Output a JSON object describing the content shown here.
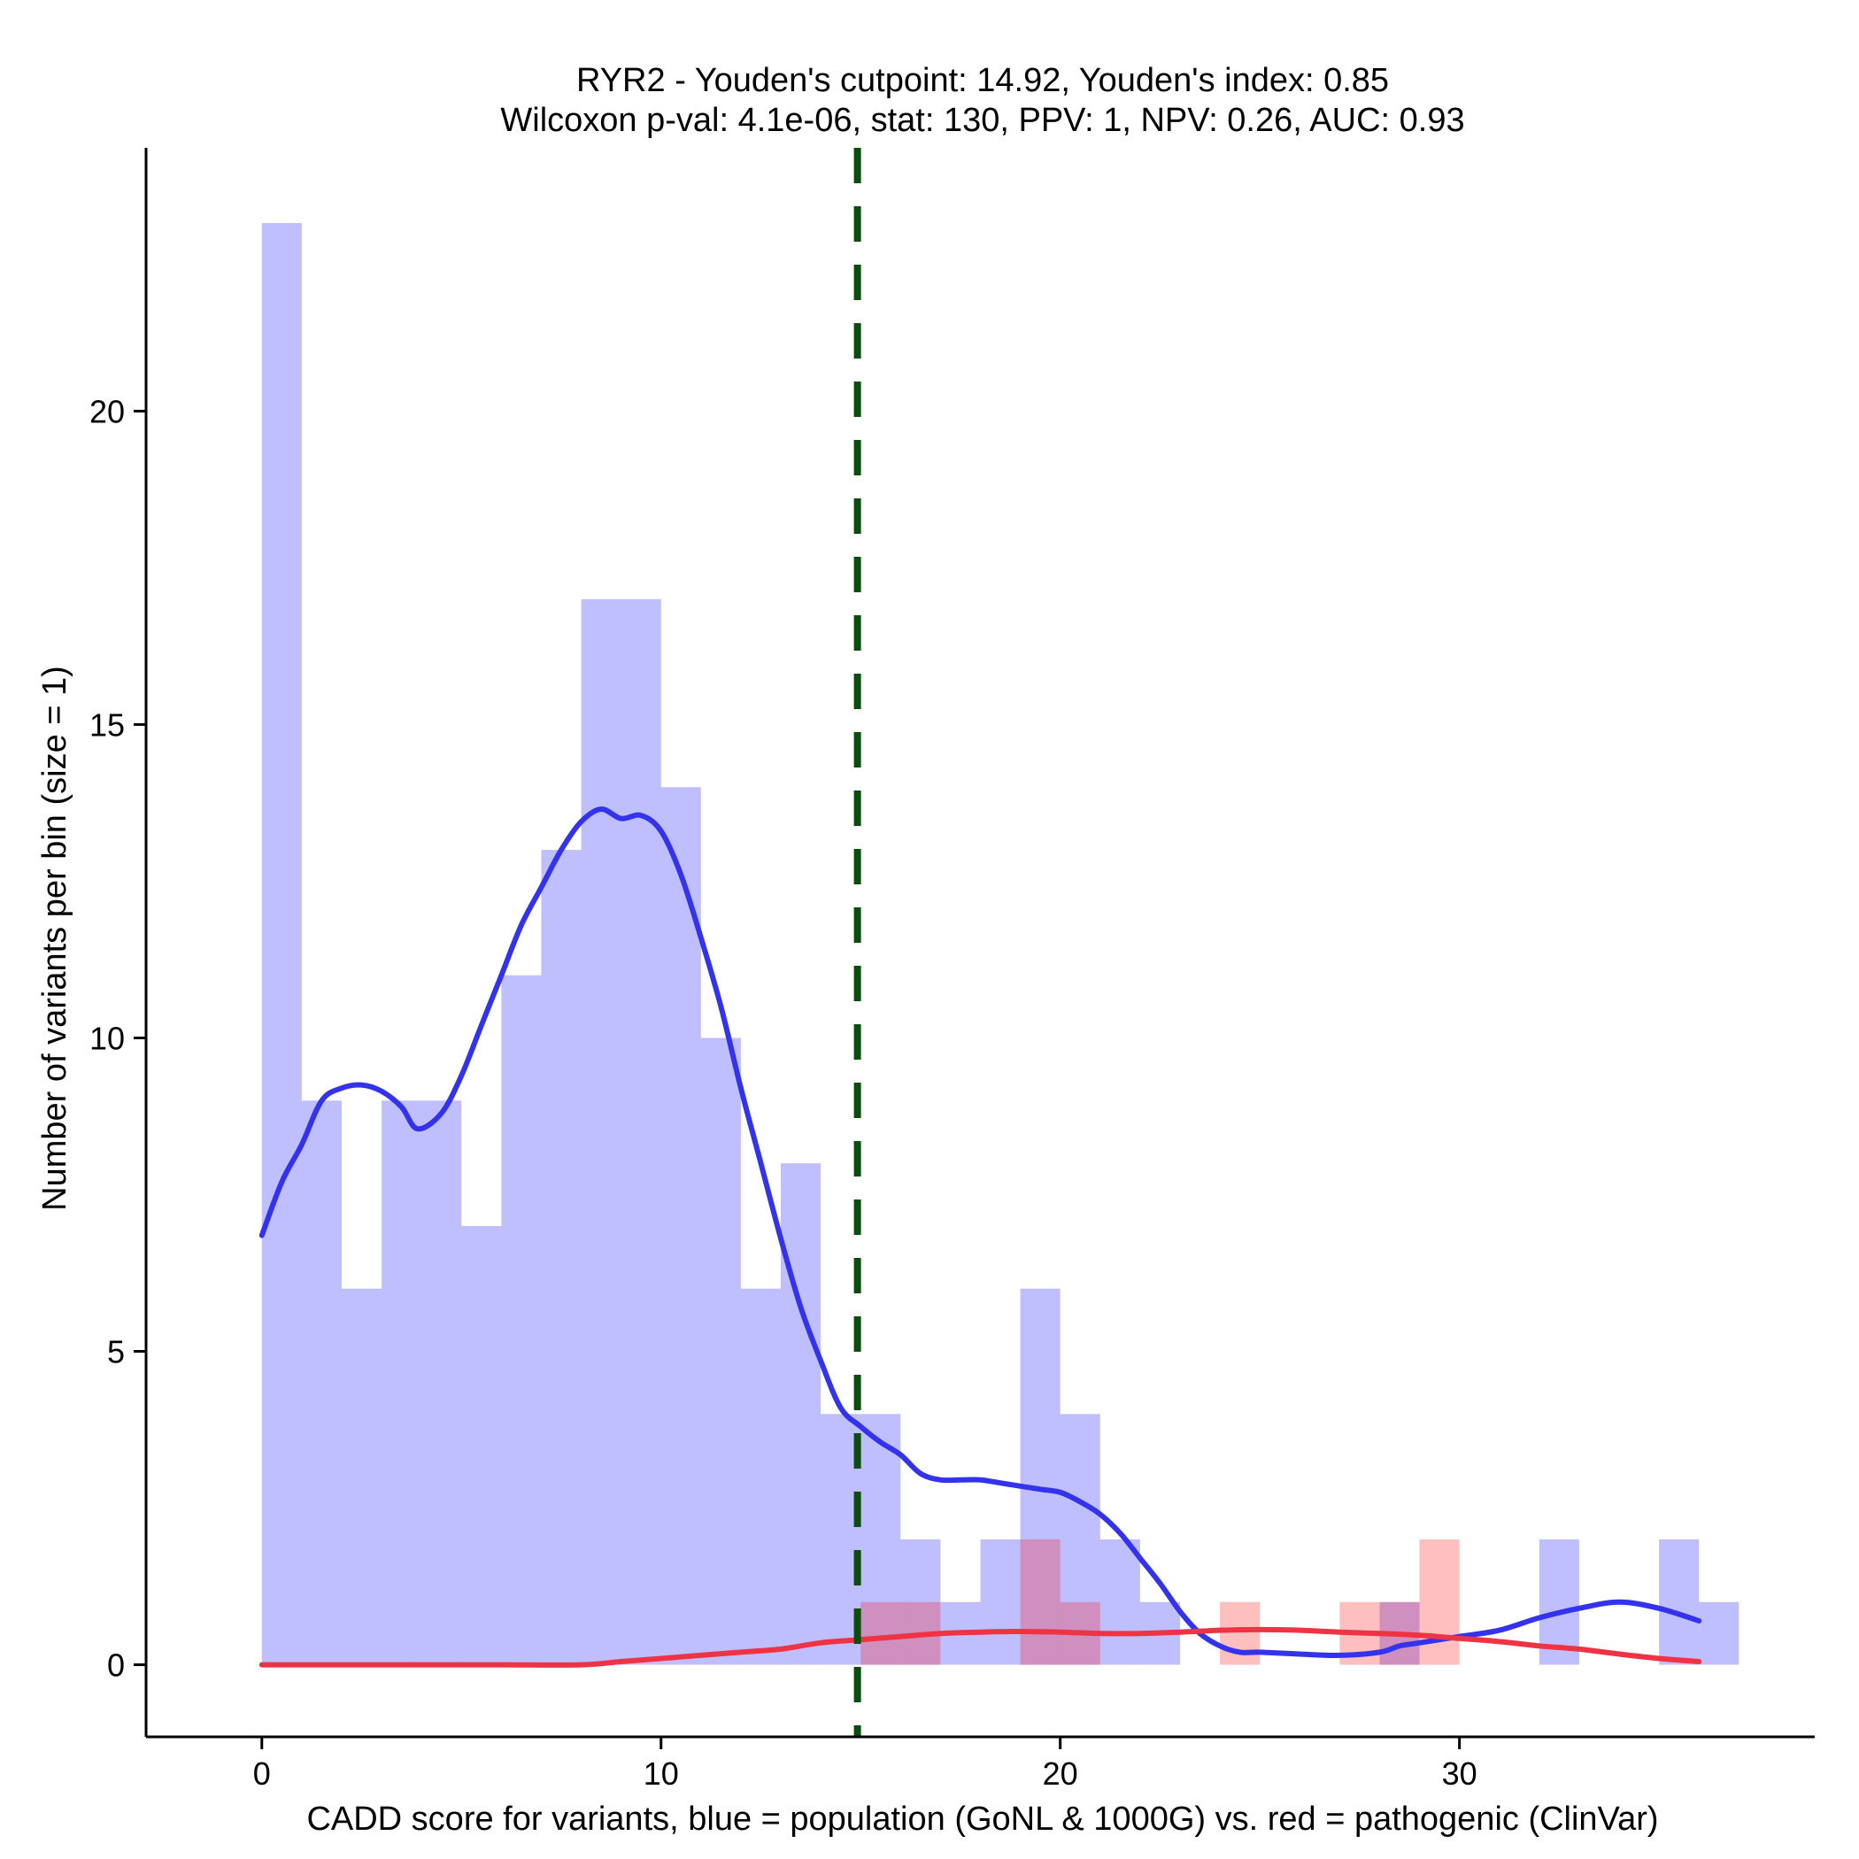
{
  "chart_data": {
    "type": "bar",
    "title_line1": "RYR2 - Youden's cutpoint: 14.92, Youden's index: 0.85",
    "title_line2": "Wilcoxon p-val: 4.1e-06, stat: 130, PPV: 1, NPV: 0.26, AUC: 0.93",
    "xlabel": "CADD score for variants, blue = population (GoNL & 1000G) vs. red = pathogenic (ClinVar)",
    "ylabel": "Number of variants per bin (size = 1)",
    "xlim": [
      -2.9,
      38.9
    ],
    "ylim": [
      -1.15,
      24.2
    ],
    "xticks": [
      0,
      10,
      20,
      30
    ],
    "yticks": [
      0,
      5,
      10,
      15,
      20
    ],
    "bin_width": 1,
    "cutpoint": 14.92,
    "colors": {
      "population_fill": "#0000ff",
      "pathogenic_fill": "#ff0000",
      "population_line": "#3333ee",
      "pathogenic_line": "#ee3344",
      "cutpoint_line": "#0b4d0b"
    },
    "series": [
      {
        "name": "population (GoNL & 1000G)",
        "bins": [
          {
            "start": 0,
            "count": 23
          },
          {
            "start": 1,
            "count": 9
          },
          {
            "start": 2,
            "count": 6
          },
          {
            "start": 3,
            "count": 9
          },
          {
            "start": 4,
            "count": 9
          },
          {
            "start": 5,
            "count": 7
          },
          {
            "start": 6,
            "count": 11
          },
          {
            "start": 7,
            "count": 13
          },
          {
            "start": 8,
            "count": 17
          },
          {
            "start": 9,
            "count": 17
          },
          {
            "start": 10,
            "count": 14
          },
          {
            "start": 11,
            "count": 10
          },
          {
            "start": 12,
            "count": 6
          },
          {
            "start": 13,
            "count": 8
          },
          {
            "start": 14,
            "count": 4
          },
          {
            "start": 15,
            "count": 4
          },
          {
            "start": 16,
            "count": 2
          },
          {
            "start": 17,
            "count": 1
          },
          {
            "start": 18,
            "count": 2
          },
          {
            "start": 19,
            "count": 6
          },
          {
            "start": 20,
            "count": 4
          },
          {
            "start": 21,
            "count": 2
          },
          {
            "start": 22,
            "count": 1
          },
          {
            "start": 28,
            "count": 1
          },
          {
            "start": 32,
            "count": 2
          },
          {
            "start": 35,
            "count": 2
          },
          {
            "start": 36,
            "count": 1
          }
        ],
        "density": [
          [
            0,
            6.85
          ],
          [
            0.5,
            7.7
          ],
          [
            1,
            8.3
          ],
          [
            1.5,
            9.0
          ],
          [
            2,
            9.2
          ],
          [
            2.5,
            9.25
          ],
          [
            3,
            9.15
          ],
          [
            3.5,
            8.9
          ],
          [
            3.9,
            8.55
          ],
          [
            4.5,
            8.8
          ],
          [
            5,
            9.4
          ],
          [
            5.5,
            10.2
          ],
          [
            6,
            11.0
          ],
          [
            6.5,
            11.8
          ],
          [
            7,
            12.4
          ],
          [
            7.5,
            13.0
          ],
          [
            8,
            13.45
          ],
          [
            8.5,
            13.65
          ],
          [
            9,
            13.5
          ],
          [
            9.5,
            13.55
          ],
          [
            10,
            13.3
          ],
          [
            10.5,
            12.6
          ],
          [
            11,
            11.6
          ],
          [
            11.5,
            10.5
          ],
          [
            12,
            9.2
          ],
          [
            12.5,
            8.0
          ],
          [
            13,
            6.8
          ],
          [
            13.5,
            5.7
          ],
          [
            14,
            4.85
          ],
          [
            14.5,
            4.1
          ],
          [
            15,
            3.8
          ],
          [
            15.5,
            3.55
          ],
          [
            16,
            3.35
          ],
          [
            16.5,
            3.05
          ],
          [
            17,
            2.95
          ],
          [
            17.5,
            2.95
          ],
          [
            18,
            2.95
          ],
          [
            18.5,
            2.9
          ],
          [
            19,
            2.85
          ],
          [
            19.5,
            2.8
          ],
          [
            20,
            2.75
          ],
          [
            20.5,
            2.6
          ],
          [
            21,
            2.4
          ],
          [
            21.5,
            2.1
          ],
          [
            22,
            1.7
          ],
          [
            22.5,
            1.3
          ],
          [
            23,
            0.85
          ],
          [
            23.5,
            0.5
          ],
          [
            24,
            0.3
          ],
          [
            24.5,
            0.2
          ],
          [
            25,
            0.2
          ],
          [
            26,
            0.17
          ],
          [
            27,
            0.15
          ],
          [
            28,
            0.2
          ],
          [
            28.5,
            0.3
          ],
          [
            29,
            0.35
          ],
          [
            30,
            0.45
          ],
          [
            31,
            0.55
          ],
          [
            32,
            0.75
          ],
          [
            33,
            0.9
          ],
          [
            34,
            1.0
          ],
          [
            35,
            0.9
          ],
          [
            36,
            0.7
          ]
        ]
      },
      {
        "name": "pathogenic (ClinVar)",
        "bins": [
          {
            "start": 15,
            "count": 1
          },
          {
            "start": 16,
            "count": 1
          },
          {
            "start": 19,
            "count": 2
          },
          {
            "start": 20,
            "count": 1
          },
          {
            "start": 24,
            "count": 1
          },
          {
            "start": 27,
            "count": 1
          },
          {
            "start": 28,
            "count": 1
          },
          {
            "start": 29,
            "count": 2
          }
        ],
        "density": [
          [
            0,
            0
          ],
          [
            2,
            0
          ],
          [
            4,
            0
          ],
          [
            6,
            0
          ],
          [
            8,
            0
          ],
          [
            9,
            0.05
          ],
          [
            10,
            0.1
          ],
          [
            11,
            0.15
          ],
          [
            12,
            0.2
          ],
          [
            13,
            0.25
          ],
          [
            14,
            0.35
          ],
          [
            15,
            0.4
          ],
          [
            16,
            0.45
          ],
          [
            17,
            0.5
          ],
          [
            18,
            0.52
          ],
          [
            19,
            0.53
          ],
          [
            20,
            0.52
          ],
          [
            21,
            0.5
          ],
          [
            22,
            0.5
          ],
          [
            23,
            0.52
          ],
          [
            24,
            0.55
          ],
          [
            25,
            0.56
          ],
          [
            26,
            0.55
          ],
          [
            27,
            0.52
          ],
          [
            28,
            0.5
          ],
          [
            29,
            0.47
          ],
          [
            30,
            0.42
          ],
          [
            31,
            0.37
          ],
          [
            32,
            0.3
          ],
          [
            33,
            0.25
          ],
          [
            34,
            0.17
          ],
          [
            35,
            0.1
          ],
          [
            36,
            0.05
          ]
        ]
      }
    ]
  }
}
